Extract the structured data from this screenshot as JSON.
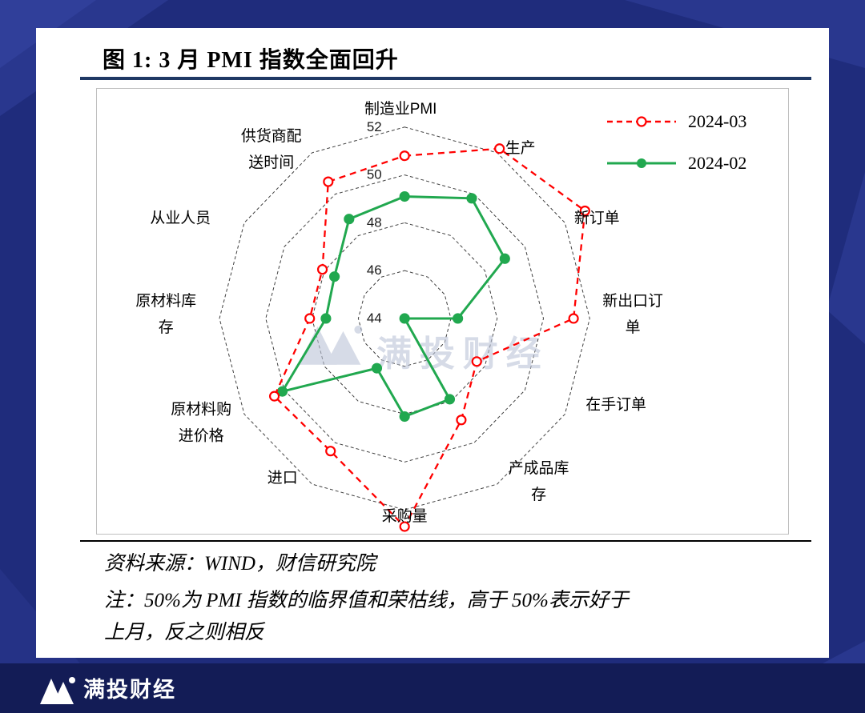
{
  "page": {
    "title": "图 1: 3 月 PMI 指数全面回升",
    "source_line": "资料来源：WIND，财信研究院",
    "note_lines": [
      "注：50%为 PMI 指数的临界值和荣枯线，高于 50%表示好于",
      "上月，反之则相反"
    ],
    "watermark": "满投财经",
    "footer_brand": "满投财经"
  },
  "chart_data": {
    "type": "radar",
    "categories": [
      "制造业PMI",
      "生产",
      "新订单",
      "新出口订单",
      "在手订单",
      "产成品库存",
      "采购量",
      "进口",
      "原材料购进价格",
      "原材料库存",
      "从业人员",
      "供货商配送时间"
    ],
    "series": [
      {
        "name": "2024-03",
        "color": "#ff0000",
        "line_style": "dashed",
        "marker": "open-circle",
        "values": [
          50.8,
          52.2,
          53.0,
          51.3,
          47.6,
          48.9,
          52.7,
          50.4,
          50.5,
          48.1,
          48.1,
          50.6
        ]
      },
      {
        "name": "2024-02",
        "color": "#21a84f",
        "line_style": "solid",
        "marker": "filled-circle",
        "values": [
          49.1,
          49.8,
          49.0,
          46.3,
          44.0,
          47.9,
          48.1,
          46.4,
          50.1,
          47.4,
          47.5,
          48.8
        ]
      }
    ],
    "radial_axis": {
      "min": 44,
      "max": 52,
      "step": 2,
      "ticks": [
        44,
        46,
        48,
        50,
        52
      ]
    },
    "grid": "dashed-polygon-rings",
    "legend_position": "top-right"
  },
  "colors": {
    "background": "#1f2c7c",
    "footer_background": "#131c56",
    "title_underline": "#1f3864",
    "grid_line": "#404040",
    "watermark": "#bcc4d8",
    "series_march": "#ff0000",
    "series_feb": "#21a84f"
  }
}
